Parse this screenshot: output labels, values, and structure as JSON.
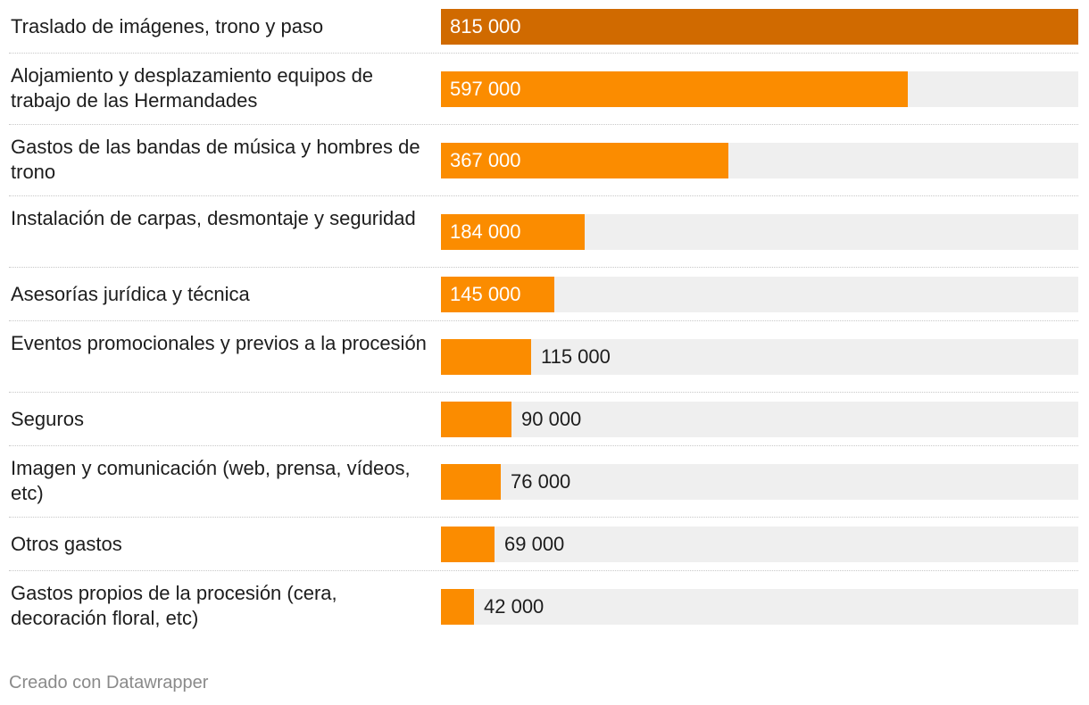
{
  "chart_data": {
    "type": "bar",
    "orientation": "horizontal",
    "categories": [
      "Traslado de imágenes, trono y paso",
      "Alojamiento y desplazamiento equipos de trabajo de las Hermandades",
      "Gastos de las bandas de música y hombres de trono",
      "Instalación de carpas, desmontaje y seguridad",
      "Asesorías jurídica y técnica",
      "Eventos promocionales y previos a la procesión",
      "Seguros",
      "Imagen y comunicación (web, prensa, vídeos, etc)",
      "Otros gastos",
      "Gastos propios de la procesión (cera, decoración floral, etc)"
    ],
    "values": [
      815000,
      597000,
      367000,
      184000,
      145000,
      115000,
      90000,
      76000,
      69000,
      42000
    ],
    "value_labels": [
      "815 000",
      "597 000",
      "367 000",
      "184 000",
      "145 000",
      "115 000",
      "90 000",
      "76 000",
      "69 000",
      "42 000"
    ],
    "xlim": [
      0,
      815000
    ],
    "colors": {
      "highlight": "#d06a00",
      "bar": "#fb8c00",
      "track": "#efefef"
    },
    "highlight_index": 0,
    "title": "",
    "xlabel": "",
    "ylabel": ""
  },
  "footer": {
    "credit": "Creado con Datawrapper"
  }
}
